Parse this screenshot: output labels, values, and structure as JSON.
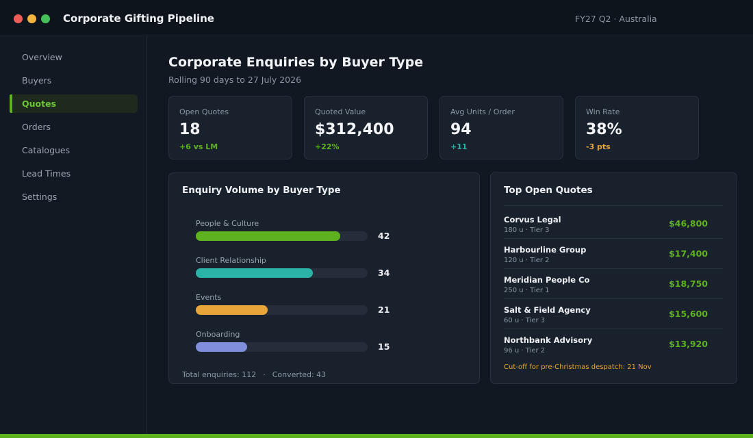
{
  "app": {
    "title": "Corporate Gifting Pipeline",
    "period": "FY27 Q2  ·  Australia"
  },
  "window_controls": [
    "close",
    "minimize",
    "maximize"
  ],
  "sidebar": {
    "items": [
      {
        "label": "Overview",
        "active": false
      },
      {
        "label": "Buyers",
        "active": false
      },
      {
        "label": "Quotes",
        "active": true
      },
      {
        "label": "Orders",
        "active": false
      },
      {
        "label": "Catalogues",
        "active": false
      },
      {
        "label": "Lead Times",
        "active": false
      },
      {
        "label": "Settings",
        "active": false
      }
    ]
  },
  "page": {
    "title": "Corporate Enquiries by Buyer Type",
    "subtitle": "Rolling 90 days to 27 July 2026"
  },
  "kpis": [
    {
      "label": "Open Quotes",
      "value": "18",
      "delta": "+6 vs LM",
      "delta_color": "#5fb21f"
    },
    {
      "label": "Quoted Value",
      "value": "$312,400",
      "delta": "+22%",
      "delta_color": "#5fb21f"
    },
    {
      "label": "Avg Units / Order",
      "value": "94",
      "delta": "+11",
      "delta_color": "#2bb3a8"
    },
    {
      "label": "Win Rate",
      "value": "38%",
      "delta": "-3 pts",
      "delta_color": "#e8a53a"
    }
  ],
  "enquiry_panel": {
    "title": "Enquiry Volume by Buyer Type",
    "totals": {
      "total": "Total enquiries: 112",
      "separator": "·",
      "converted": "Converted: 43"
    }
  },
  "chart_data": {
    "type": "bar",
    "orientation": "horizontal",
    "categories": [
      "People & Culture",
      "Client Relationship",
      "Events",
      "Onboarding"
    ],
    "values": [
      42,
      34,
      21,
      15
    ],
    "colors": [
      "#5fb21f",
      "#2bb3a8",
      "#e8a53a",
      "#7f8fdc"
    ],
    "xlim": [
      0,
      50
    ]
  },
  "quotes_panel": {
    "title": "Top Open Quotes",
    "quotes": [
      {
        "name": "Corvus Legal",
        "meta": "180 u  ·  Tier 3",
        "amount": "$46,800"
      },
      {
        "name": "Harbourline Group",
        "meta": "120 u  ·  Tier 2",
        "amount": "$17,400"
      },
      {
        "name": "Meridian People Co",
        "meta": "250 u  ·  Tier 1",
        "amount": "$18,750"
      },
      {
        "name": "Salt & Field Agency",
        "meta": "60 u  ·  Tier 3",
        "amount": "$15,600"
      },
      {
        "name": "Northbank Advisory",
        "meta": "96 u  ·  Tier 2",
        "amount": "$13,920"
      }
    ],
    "note": "Cut-off for pre-Christmas despatch: 21 Nov"
  },
  "colors": {
    "accent": "#5fb21f",
    "background": "#111821",
    "panel": "#19212c"
  }
}
